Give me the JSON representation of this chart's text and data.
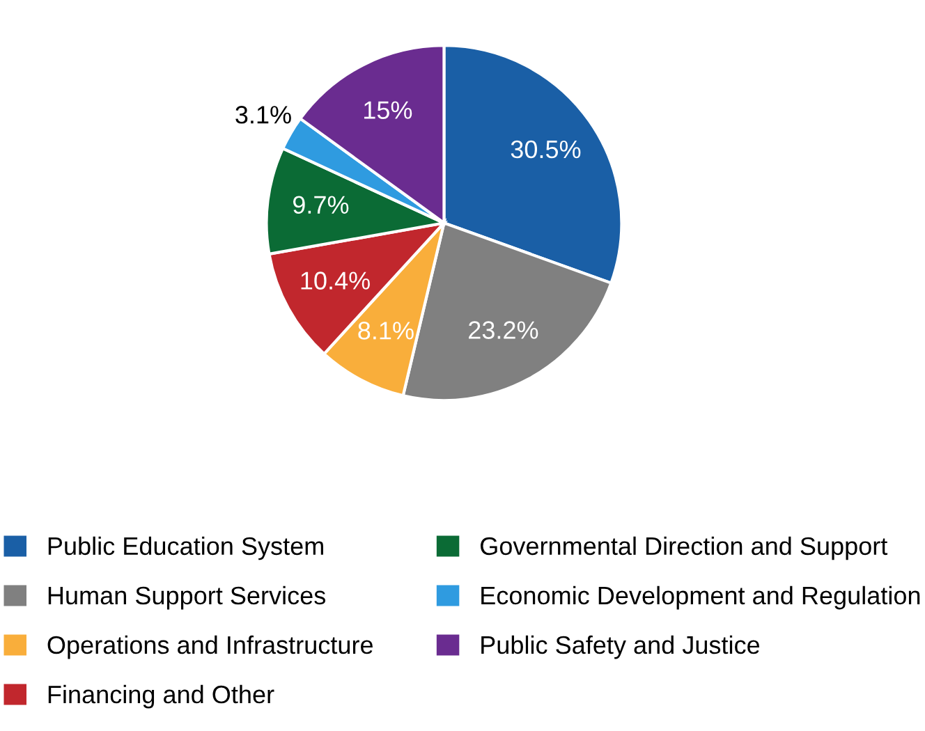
{
  "chart_data": {
    "type": "pie",
    "categories": [
      "Public Education System",
      "Human Support Services",
      "Operations and Infrastructure",
      "Financing and Other",
      "Governmental Direction and Support",
      "Economic Development and Regulation",
      "Public Safety and Justice"
    ],
    "values": [
      30.5,
      23.2,
      8.1,
      10.4,
      9.7,
      3.1,
      15
    ],
    "value_labels": [
      "30.5%",
      "23.2%",
      "8.1%",
      "10.4%",
      "9.7%",
      "3.1%",
      "15%"
    ],
    "colors": [
      "#1a5fa6",
      "#808080",
      "#f9ae3b",
      "#c1272d",
      "#0b6b35",
      "#2f9be0",
      "#6a2c90"
    ],
    "legend": "bottom"
  }
}
